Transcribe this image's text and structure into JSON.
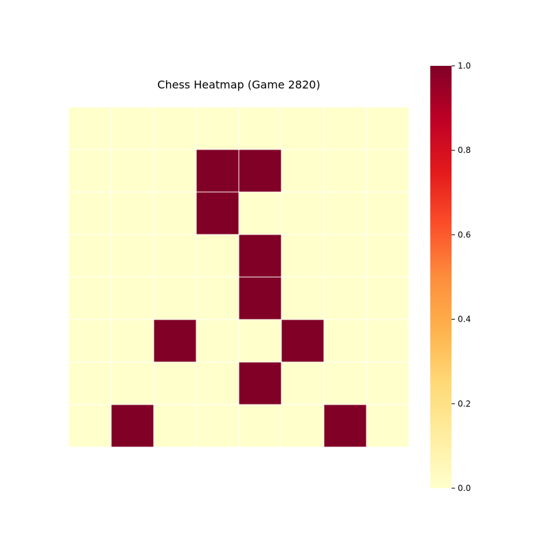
{
  "chart_data": {
    "type": "heatmap",
    "title": "Chess Heatmap (Game 2820)",
    "xlabel": "",
    "ylabel": "",
    "rows": 8,
    "cols": 8,
    "values": [
      [
        0,
        0,
        0,
        0,
        0,
        0,
        0,
        0
      ],
      [
        0,
        0,
        0,
        1,
        1,
        0,
        0,
        0
      ],
      [
        0,
        0,
        0,
        1,
        0,
        0,
        0,
        0
      ],
      [
        0,
        0,
        0,
        0,
        1,
        0,
        0,
        0
      ],
      [
        0,
        0,
        0,
        0,
        1,
        0,
        0,
        0
      ],
      [
        0,
        0,
        1,
        0,
        0,
        1,
        0,
        0
      ],
      [
        0,
        0,
        0,
        0,
        1,
        0,
        0,
        0
      ],
      [
        0,
        1,
        0,
        0,
        0,
        0,
        1,
        0
      ]
    ],
    "vmin": 0,
    "vmax": 1,
    "colormap": "YlOrRd",
    "low_color": "#ffffcc",
    "high_color": "#800026",
    "cell_border_color": "#ffffff",
    "colorbar": {
      "ticks": [
        0.0,
        0.2,
        0.4,
        0.6,
        0.8,
        1.0
      ],
      "tick_labels": [
        "0.0",
        "0.2",
        "0.4",
        "0.6",
        "0.8",
        "1.0"
      ]
    },
    "grid": false,
    "axes_visible": false
  }
}
